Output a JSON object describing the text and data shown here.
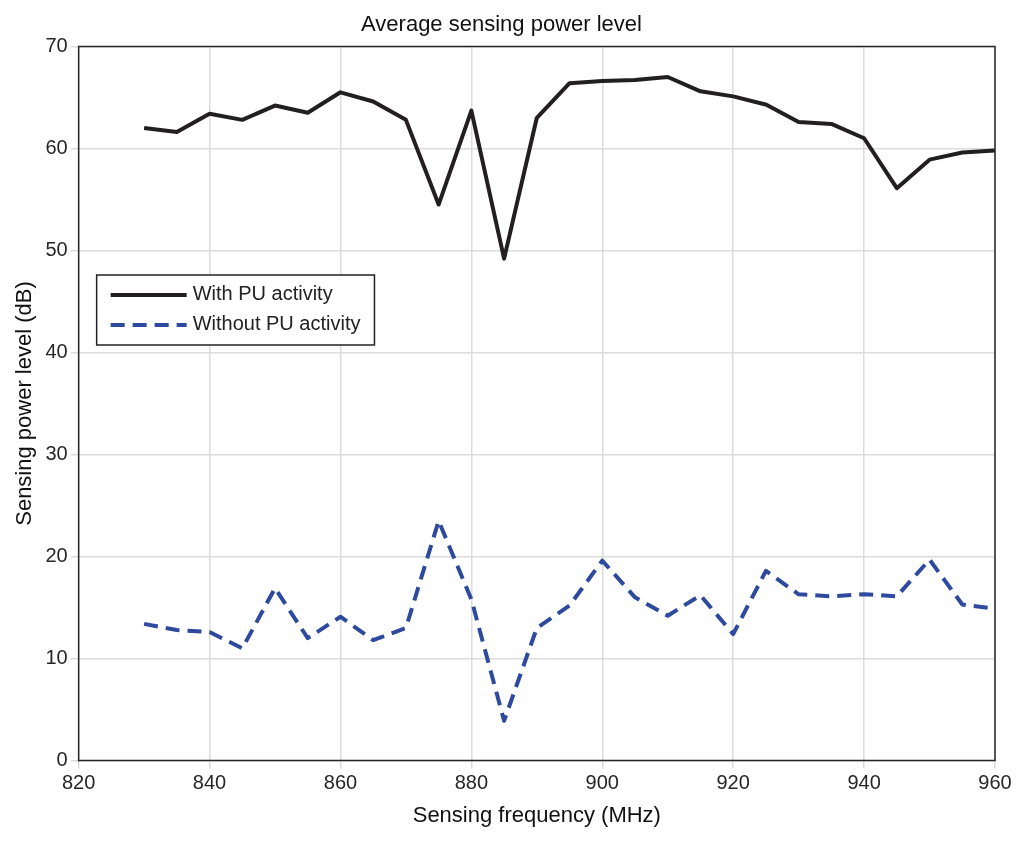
{
  "chart_data": {
    "type": "line",
    "title": "Average sensing power level",
    "xlabel": "Sensing frequency (MHz)",
    "ylabel": "Sensing power level (dB)",
    "x": [
      830,
      835,
      840,
      845,
      850,
      855,
      860,
      865,
      870,
      875,
      880,
      885,
      890,
      895,
      900,
      905,
      910,
      915,
      920,
      925,
      930,
      935,
      940,
      945,
      950,
      955,
      960
    ],
    "series": [
      {
        "name": "With PU activity",
        "color": "#231f20",
        "line_style": "solid",
        "values": [
          62.0,
          61.6,
          63.4,
          62.8,
          64.2,
          63.5,
          65.5,
          64.6,
          62.8,
          54.5,
          63.7,
          49.2,
          63.0,
          66.4,
          66.6,
          66.7,
          67.0,
          65.6,
          65.1,
          64.3,
          62.6,
          62.4,
          61.0,
          56.1,
          58.9,
          59.6,
          59.8
        ]
      },
      {
        "name": "Without PU activity",
        "color": "#2e4a9e",
        "line_style": "dashed",
        "values": [
          13.4,
          12.8,
          12.6,
          11.0,
          16.9,
          12.0,
          14.1,
          11.8,
          13.0,
          23.5,
          15.8,
          3.9,
          13.0,
          15.2,
          19.6,
          16.0,
          14.2,
          16.2,
          12.4,
          18.6,
          16.3,
          16.1,
          16.3,
          16.1,
          19.7,
          15.3,
          14.9
        ]
      }
    ],
    "xlim": [
      820,
      960
    ],
    "xticks": [
      820,
      840,
      860,
      880,
      900,
      920,
      940,
      960
    ],
    "ylim": [
      0,
      70
    ],
    "yticks": [
      0,
      10,
      20,
      30,
      40,
      50,
      60,
      70
    ],
    "grid": true,
    "legend": "left",
    "marker": "none"
  }
}
